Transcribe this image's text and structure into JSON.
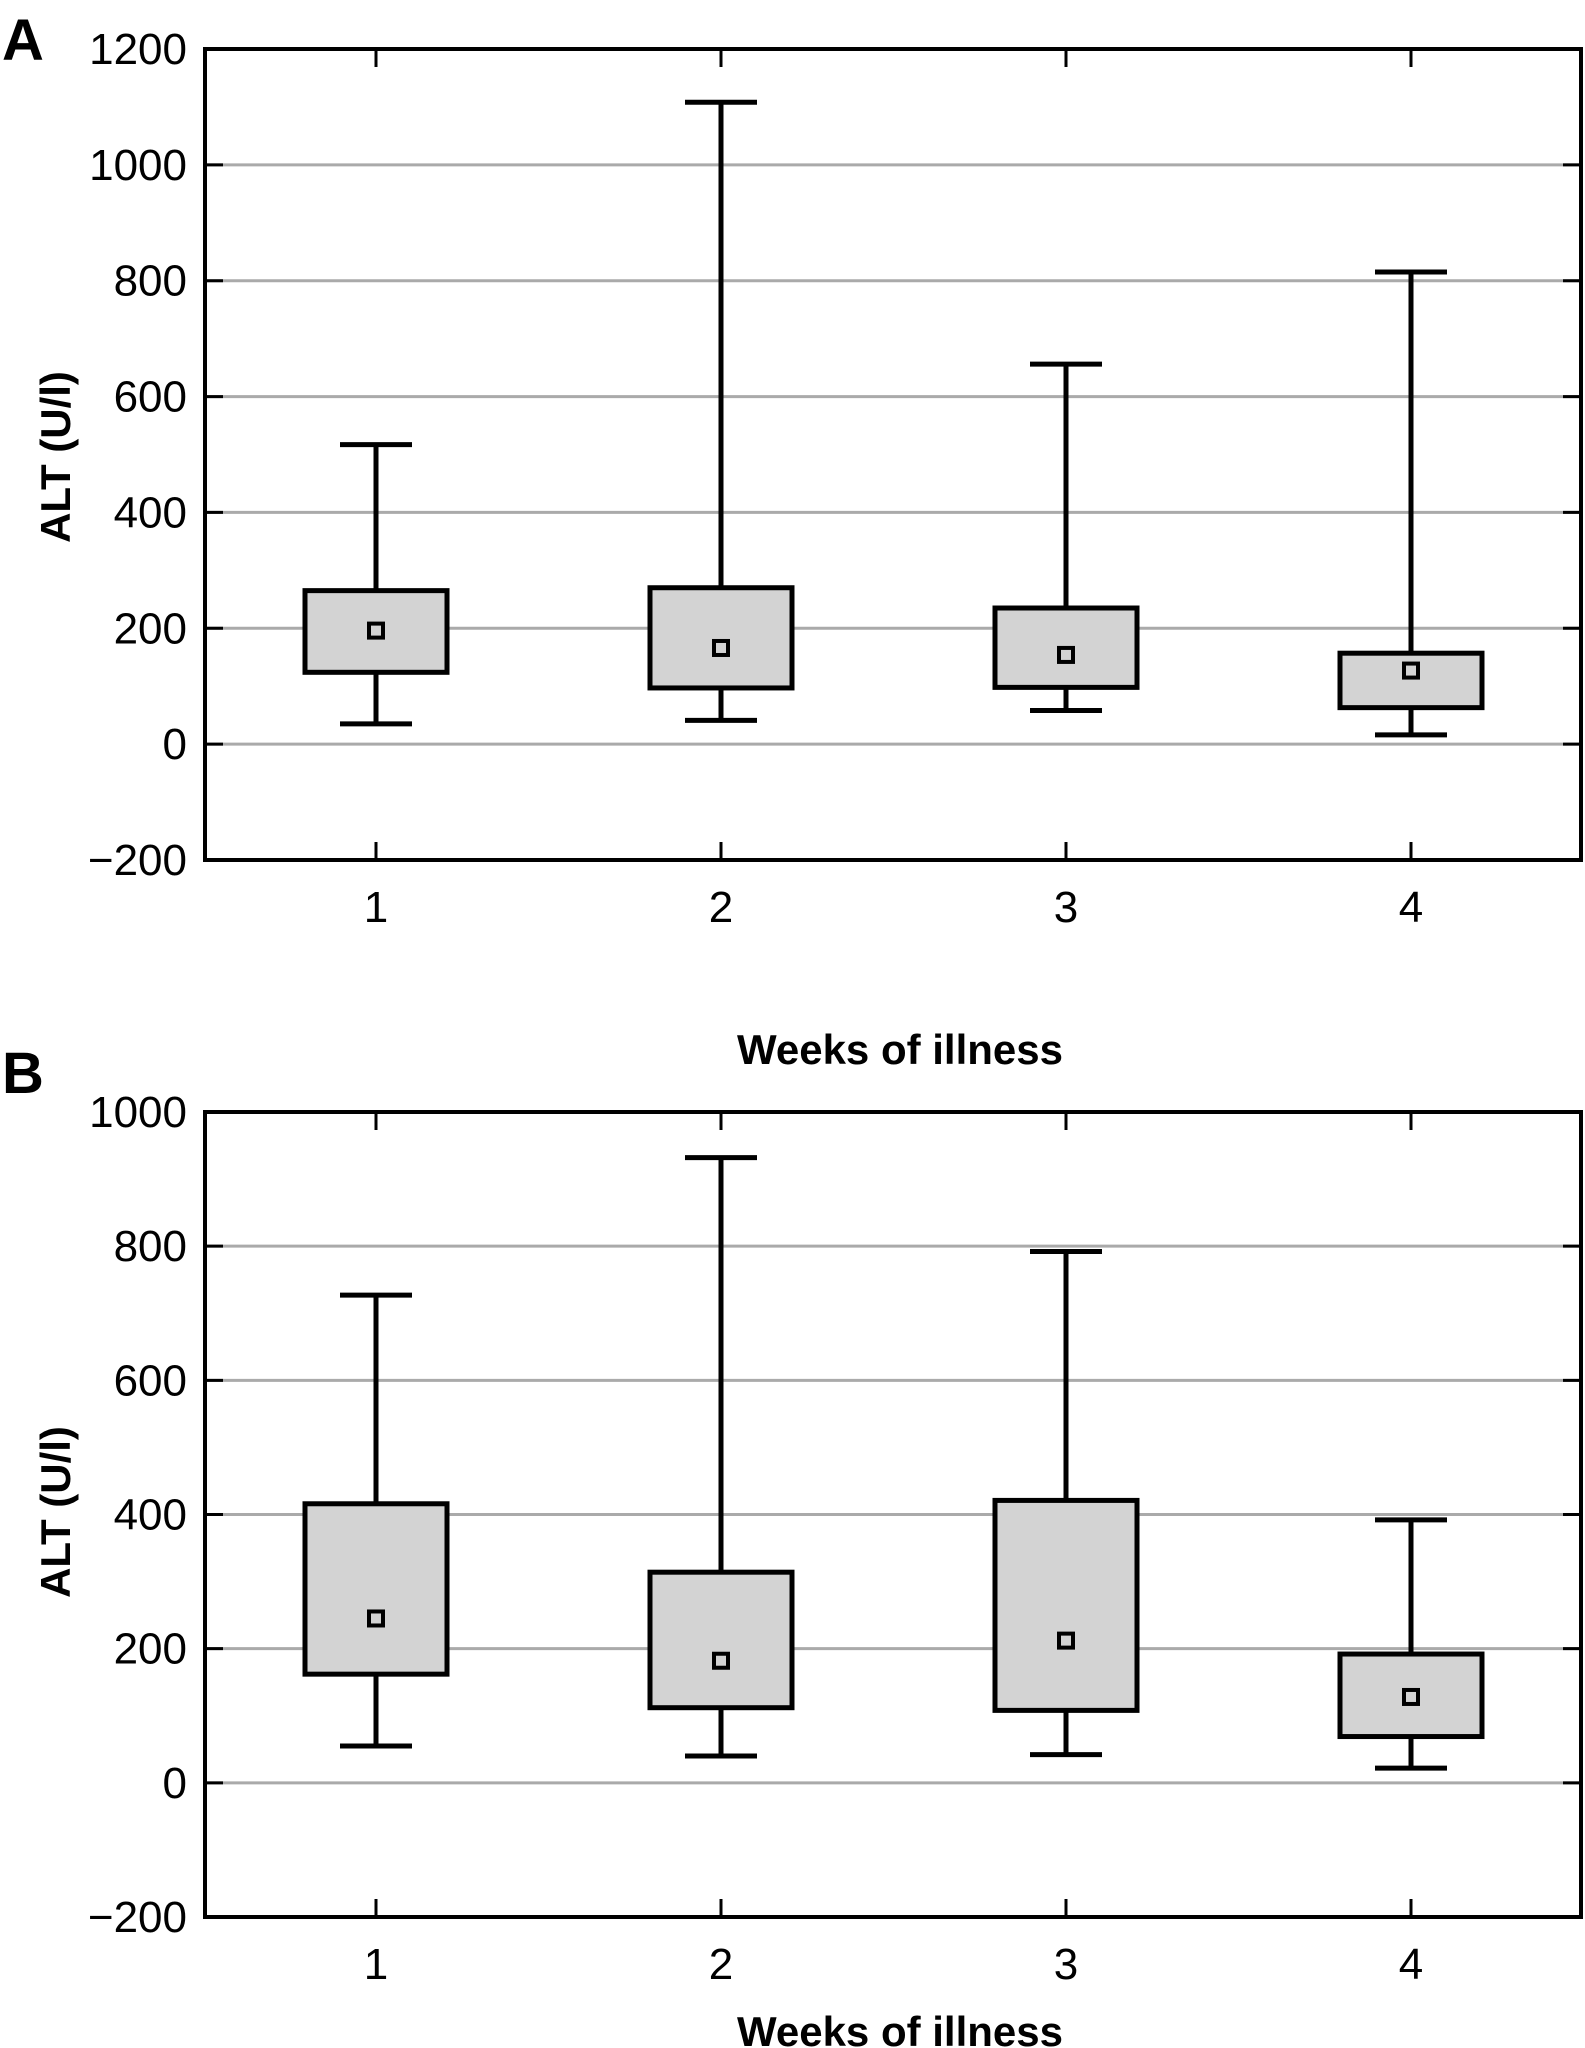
{
  "colors": {
    "box_fill": "#d3d3d3",
    "stroke": "#000000",
    "grid": "#aaaaaa",
    "median_fill": "#d3d3d3"
  },
  "chart_data": [
    {
      "panel": "A",
      "type": "box",
      "title": "",
      "xlabel": "Weeks of illness",
      "ylabel": "ALT (U/l)",
      "ylim": [
        -200,
        1200
      ],
      "yticks": [
        -200,
        0,
        200,
        400,
        600,
        800,
        1000,
        1200
      ],
      "ytick_labels": [
        "−200",
        "0",
        "200",
        "400",
        "600",
        "800",
        "1000",
        "1200"
      ],
      "grid": "horizontal",
      "categories": [
        "1",
        "2",
        "3",
        "4"
      ],
      "series": [
        {
          "category": "1",
          "whisker_low": 35,
          "q1": 124,
          "median": 196,
          "q3": 265,
          "whisker_high": 517
        },
        {
          "category": "2",
          "whisker_low": 41,
          "q1": 97,
          "median": 166,
          "q3": 270,
          "whisker_high": 1108
        },
        {
          "category": "3",
          "whisker_low": 58,
          "q1": 98,
          "median": 154,
          "q3": 235,
          "whisker_high": 656
        },
        {
          "category": "4",
          "whisker_low": 16,
          "q1": 63,
          "median": 127,
          "q3": 157,
          "whisker_high": 815
        }
      ]
    },
    {
      "panel": "B",
      "type": "box",
      "title": "",
      "xlabel": "Weeks of illness",
      "ylabel": "ALT (U/l)",
      "ylim": [
        -200,
        1000
      ],
      "yticks": [
        -200,
        0,
        200,
        400,
        600,
        800,
        1000
      ],
      "ytick_labels": [
        "−200",
        "0",
        "200",
        "400",
        "600",
        "800",
        "1000"
      ],
      "grid": "horizontal",
      "categories": [
        "1",
        "2",
        "3",
        "4"
      ],
      "series": [
        {
          "category": "1",
          "whisker_low": 55,
          "q1": 162,
          "median": 245,
          "q3": 416,
          "whisker_high": 727
        },
        {
          "category": "2",
          "whisker_low": 40,
          "q1": 112,
          "median": 182,
          "q3": 314,
          "whisker_high": 932
        },
        {
          "category": "3",
          "whisker_low": 42,
          "q1": 108,
          "median": 212,
          "q3": 421,
          "whisker_high": 792
        },
        {
          "category": "4",
          "whisker_low": 22,
          "q1": 69,
          "median": 128,
          "q3": 192,
          "whisker_high": 392
        }
      ]
    }
  ]
}
